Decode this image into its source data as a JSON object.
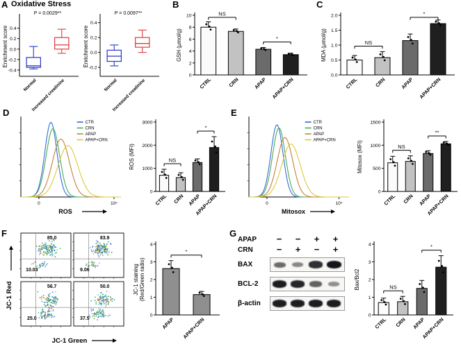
{
  "panels": {
    "A": {
      "label": "A",
      "title": "Oxidative Stress"
    },
    "B": {
      "label": "B"
    },
    "C": {
      "label": "C"
    },
    "D": {
      "label": "D"
    },
    "E": {
      "label": "E"
    },
    "F": {
      "label": "F"
    },
    "G": {
      "label": "G"
    }
  },
  "blot": {
    "target": "blot-area",
    "header_rows": [
      {
        "label": "APAP",
        "signs": [
          "−",
          "−",
          "+",
          "+"
        ]
      },
      {
        "label": "CRN",
        "signs": [
          "−",
          "+",
          "−",
          "+"
        ]
      }
    ],
    "proteins": [
      {
        "name": "BAX",
        "intensities": [
          0.5,
          0.35,
          0.85,
          1.0
        ]
      },
      {
        "name": "BCL-2",
        "intensities": [
          0.95,
          0.9,
          0.55,
          0.3
        ]
      },
      {
        "name": "β-actin",
        "intensities": [
          0.95,
          0.95,
          0.95,
          0.95
        ]
      }
    ]
  },
  "chart_data": [
    {
      "panel": "A",
      "type": "boxplot",
      "target": "chart-a1",
      "p_label": "P = 0.0029**",
      "ylabel": "Enrichment score",
      "ylim": [
        -0.52,
        0.62
      ],
      "yticks": [
        -0.4,
        -0.2,
        0,
        0.2,
        0.4
      ],
      "ytick_labels": [
        "-0.4",
        "-0.2",
        "0.0",
        "0.2",
        "0.4"
      ],
      "categories": [
        "Normal",
        "Increased creatinine"
      ],
      "colors": [
        "#2a35c8",
        "#e03a3a"
      ],
      "boxes": [
        {
          "lo": -0.38,
          "q1": -0.35,
          "med": -0.32,
          "q3": -0.16,
          "hi": 0.05
        },
        {
          "lo": -0.08,
          "q1": 0.0,
          "med": 0.08,
          "q3": 0.22,
          "hi": 0.38
        }
      ]
    },
    {
      "panel": "A",
      "type": "boxplot",
      "target": "chart-a2",
      "p_label": "P = 0.0097**",
      "ylabel": "Enrichment score",
      "ylim": [
        -0.32,
        0.48
      ],
      "yticks": [
        -0.2,
        0,
        0.2,
        0.4
      ],
      "ytick_labels": [
        "-0.2",
        "0.0",
        "0.2",
        "0.4"
      ],
      "categories": [
        "Normal",
        "Increased creatinine"
      ],
      "colors": [
        "#2a35c8",
        "#e03a3a"
      ],
      "boxes": [
        {
          "lo": -0.18,
          "q1": -0.12,
          "med": -0.05,
          "q3": 0.03,
          "hi": 0.1
        },
        {
          "lo": 0.0,
          "q1": 0.07,
          "med": 0.12,
          "q3": 0.2,
          "hi": 0.3
        }
      ]
    },
    {
      "panel": "B",
      "type": "bar",
      "target": "chart-b",
      "ylabel": "GSH (μmol/g)",
      "ylim": [
        0,
        10
      ],
      "yticks": [
        0,
        2,
        4,
        6,
        8,
        10
      ],
      "ytick_labels": [
        "0",
        "2",
        "4",
        "6",
        "8",
        "10"
      ],
      "categories": [
        "CTRL",
        "CRN",
        "APAP",
        "APAP+CRN"
      ],
      "values": [
        8.0,
        7.3,
        4.3,
        3.4
      ],
      "errors": [
        0.9,
        0.4,
        0.3,
        0.25
      ],
      "colors": [
        "#fbfbfb",
        "#c2c2c2",
        "#6b6b6b",
        "#1f1f1f"
      ],
      "dots": true,
      "sig": [
        {
          "pair": [
            0,
            1
          ],
          "label": "NS"
        },
        {
          "pair": [
            2,
            3
          ],
          "label": "*"
        }
      ]
    },
    {
      "panel": "C",
      "type": "bar",
      "target": "chart-c",
      "ylabel": "MDA (μmol/g)",
      "ylim": [
        0,
        2
      ],
      "yticks": [
        0,
        0.5,
        1,
        1.5,
        2
      ],
      "ytick_labels": [
        "0.0",
        "0.5",
        "1.0",
        "1.5",
        "2.0"
      ],
      "categories": [
        "CTRL",
        "CRN",
        "APAP",
        "APAP+CRN"
      ],
      "values": [
        0.5,
        0.58,
        1.15,
        1.72
      ],
      "errors": [
        0.15,
        0.2,
        0.22,
        0.12
      ],
      "colors": [
        "#fbfbfb",
        "#c2c2c2",
        "#6b6b6b",
        "#1f1f1f"
      ],
      "dots": true,
      "sig": [
        {
          "pair": [
            0,
            1
          ],
          "label": "NS"
        },
        {
          "pair": [
            2,
            3
          ],
          "label": "*"
        }
      ]
    },
    {
      "panel": "D",
      "type": "flow_hist",
      "target": "chart-d-hist",
      "xlabel": "ROS",
      "xticks": [
        {
          "label": "0",
          "pos": 0.18
        },
        {
          "label": "10⁵",
          "pos": 0.93
        }
      ],
      "legend": [
        {
          "label": "CTR",
          "color": "#2f6bd7"
        },
        {
          "label": "CRN",
          "color": "#4aa857"
        },
        {
          "label": "APAP",
          "color": "#c87f35"
        },
        {
          "label": "APAP+CRN",
          "color": "#ddc83a"
        }
      ],
      "curves": [
        {
          "color": "#2f6bd7",
          "mu": 0.3,
          "sig": 0.085,
          "h": 0.93
        },
        {
          "color": "#4aa857",
          "mu": 0.32,
          "sig": 0.095,
          "h": 0.85
        },
        {
          "color": "#c87f35",
          "mu": 0.4,
          "sig": 0.12,
          "h": 0.72
        },
        {
          "color": "#ddc83a",
          "mu": 0.47,
          "sig": 0.14,
          "h": 0.64
        }
      ]
    },
    {
      "panel": "D",
      "type": "bar",
      "target": "chart-d-bar",
      "ylabel": "ROS (MFI)",
      "ylim": [
        0,
        3000
      ],
      "yticks": [
        0,
        1000,
        2000,
        3000
      ],
      "ytick_labels": [
        "0",
        "1000",
        "2000",
        "3000"
      ],
      "categories": [
        "CTRL",
        "CRN",
        "APAP",
        "APAP+CRN"
      ],
      "values": [
        700,
        600,
        1250,
        1900
      ],
      "errors": [
        260,
        210,
        160,
        470
      ],
      "colors": [
        "#fbfbfb",
        "#c2c2c2",
        "#6b6b6b",
        "#1f1f1f"
      ],
      "dots": true,
      "sig": [
        {
          "pair": [
            0,
            1
          ],
          "label": "NS"
        },
        {
          "pair": [
            2,
            3
          ],
          "label": "*"
        }
      ]
    },
    {
      "panel": "E",
      "type": "flow_hist",
      "target": "chart-e-hist",
      "xlabel": "Mitosox",
      "xticks": [
        {
          "label": "0",
          "pos": 0.18
        },
        {
          "label": "10⁴",
          "pos": 0.9
        }
      ],
      "legend": [
        {
          "label": "CTR",
          "color": "#2f6bd7"
        },
        {
          "label": "CRN",
          "color": "#4aa857"
        },
        {
          "label": "APAP",
          "color": "#c87f35"
        },
        {
          "label": "APAP+CRN",
          "color": "#ddc83a"
        }
      ],
      "curves": [
        {
          "color": "#2f6bd7",
          "mu": 0.28,
          "sig": 0.085,
          "h": 0.9
        },
        {
          "color": "#4aa857",
          "mu": 0.3,
          "sig": 0.09,
          "h": 0.86
        },
        {
          "color": "#c87f35",
          "mu": 0.36,
          "sig": 0.11,
          "h": 0.74
        },
        {
          "color": "#ddc83a",
          "mu": 0.42,
          "sig": 0.13,
          "h": 0.66
        }
      ]
    },
    {
      "panel": "E",
      "type": "bar",
      "target": "chart-e-bar",
      "ylabel": "Mitosox (MFI)",
      "ylim": [
        0,
        1500
      ],
      "yticks": [
        0,
        500,
        1000,
        1500
      ],
      "ytick_labels": [
        "0",
        "500",
        "1000",
        "1500"
      ],
      "categories": [
        "CTRL",
        "CRN",
        "APAP",
        "APAP+CRN"
      ],
      "values": [
        620,
        650,
        820,
        1030
      ],
      "errors": [
        140,
        120,
        60,
        50
      ],
      "colors": [
        "#fbfbfb",
        "#c2c2c2",
        "#6b6b6b",
        "#1f1f1f"
      ],
      "dots": true,
      "sig": [
        {
          "pair": [
            0,
            1
          ],
          "label": "NS"
        },
        {
          "pair": [
            2,
            3
          ],
          "label": "**"
        }
      ]
    },
    {
      "panel": "F",
      "type": "quad_grid",
      "target": "chart-f-quads",
      "xlabel": "JC-1 Green",
      "ylabel": "JC-1 Red",
      "plots": [
        {
          "upper": "85.0",
          "lower": "10.03",
          "mode": "high",
          "seed": 7
        },
        {
          "upper": "83.9",
          "lower": "9.06",
          "mode": "high",
          "seed": 19
        },
        {
          "upper": "56.7",
          "lower": "25.0",
          "mode": "low",
          "seed": 41
        },
        {
          "upper": "50.0",
          "lower": "37.5",
          "mode": "low",
          "seed": 57
        }
      ]
    },
    {
      "panel": "F",
      "type": "bar",
      "target": "chart-f-bar",
      "ylabel": "JC-1 staining\n(Red/Green radio)",
      "ylim": [
        0,
        4
      ],
      "yticks": [
        0,
        1,
        2,
        3,
        4
      ],
      "ytick_labels": [
        "0",
        "1",
        "2",
        "3",
        "4"
      ],
      "categories": [
        "APAP",
        "APAP+CRN"
      ],
      "values": [
        2.62,
        1.15
      ],
      "errors": [
        0.45,
        0.18
      ],
      "colors": [
        "#8f8f8f",
        "#8f8f8f"
      ],
      "dots": true,
      "sig": [
        {
          "pair": [
            0,
            1
          ],
          "label": "*"
        }
      ]
    },
    {
      "panel": "G",
      "type": "bar",
      "target": "chart-g-bar",
      "ylabel": "Bax/Bcl2",
      "ylim": [
        0,
        4
      ],
      "yticks": [
        0,
        1,
        2,
        3,
        4
      ],
      "ytick_labels": [
        "0",
        "1",
        "2",
        "3",
        "4"
      ],
      "categories": [
        "CTRL",
        "CRN",
        "APAP",
        "APAP+CRN"
      ],
      "values": [
        0.7,
        0.75,
        1.5,
        2.7
      ],
      "errors": [
        0.25,
        0.3,
        0.45,
        0.65
      ],
      "colors": [
        "#fbfbfb",
        "#c2c2c2",
        "#6b6b6b",
        "#1f1f1f"
      ],
      "dots": true,
      "sig": [
        {
          "pair": [
            0,
            1
          ],
          "label": "NS"
        },
        {
          "pair": [
            2,
            3
          ],
          "label": "*"
        }
      ]
    }
  ]
}
